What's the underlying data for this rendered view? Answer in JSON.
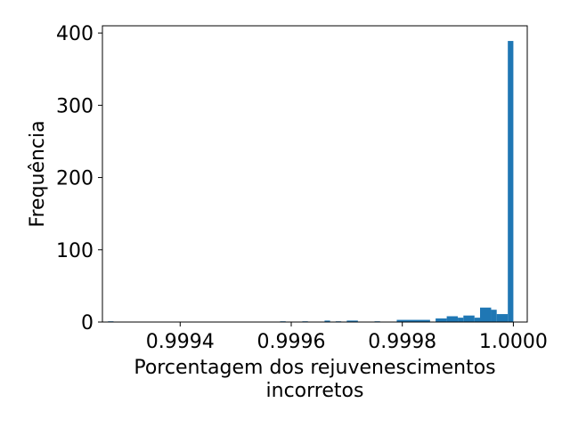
{
  "chart_data": {
    "type": "bar",
    "title": "",
    "xlabel_lines": [
      "Porcentagem dos rejuvenescimentos",
      "incorretos"
    ],
    "ylabel": "Frequência",
    "xlim": [
      0.99926,
      1.000025
    ],
    "ylim": [
      0,
      410
    ],
    "x_ticks": [
      0.9994,
      0.9996,
      0.9998,
      1.0
    ],
    "x_tick_labels": [
      "0.9994",
      "0.9996",
      "0.9998",
      "1.0000"
    ],
    "y_ticks": [
      0,
      100,
      200,
      300,
      400
    ],
    "y_tick_labels": [
      "0",
      "100",
      "200",
      "300",
      "400"
    ],
    "bar_color": "#1f77b4",
    "bins": [
      {
        "x0": 0.99927,
        "x1": 0.99928,
        "count": 1
      },
      {
        "x0": 0.99958,
        "x1": 0.99959,
        "count": 1
      },
      {
        "x0": 0.99962,
        "x1": 0.99963,
        "count": 1
      },
      {
        "x0": 0.99966,
        "x1": 0.99967,
        "count": 2
      },
      {
        "x0": 0.99968,
        "x1": 0.99969,
        "count": 1
      },
      {
        "x0": 0.9997,
        "x1": 0.99972,
        "count": 2
      },
      {
        "x0": 0.99975,
        "x1": 0.99976,
        "count": 1
      },
      {
        "x0": 0.99979,
        "x1": 0.99985,
        "count": 3
      },
      {
        "x0": 0.99986,
        "x1": 0.99988,
        "count": 5
      },
      {
        "x0": 0.99988,
        "x1": 0.9999,
        "count": 8
      },
      {
        "x0": 0.9999,
        "x1": 0.99991,
        "count": 6
      },
      {
        "x0": 0.99991,
        "x1": 0.99993,
        "count": 9
      },
      {
        "x0": 0.99993,
        "x1": 0.99994,
        "count": 6
      },
      {
        "x0": 0.99994,
        "x1": 0.99996,
        "count": 20
      },
      {
        "x0": 0.99996,
        "x1": 0.99997,
        "count": 17
      },
      {
        "x0": 0.99997,
        "x1": 0.99999,
        "count": 11
      },
      {
        "x0": 0.99999,
        "x1": 1.0,
        "count": 389
      }
    ]
  }
}
